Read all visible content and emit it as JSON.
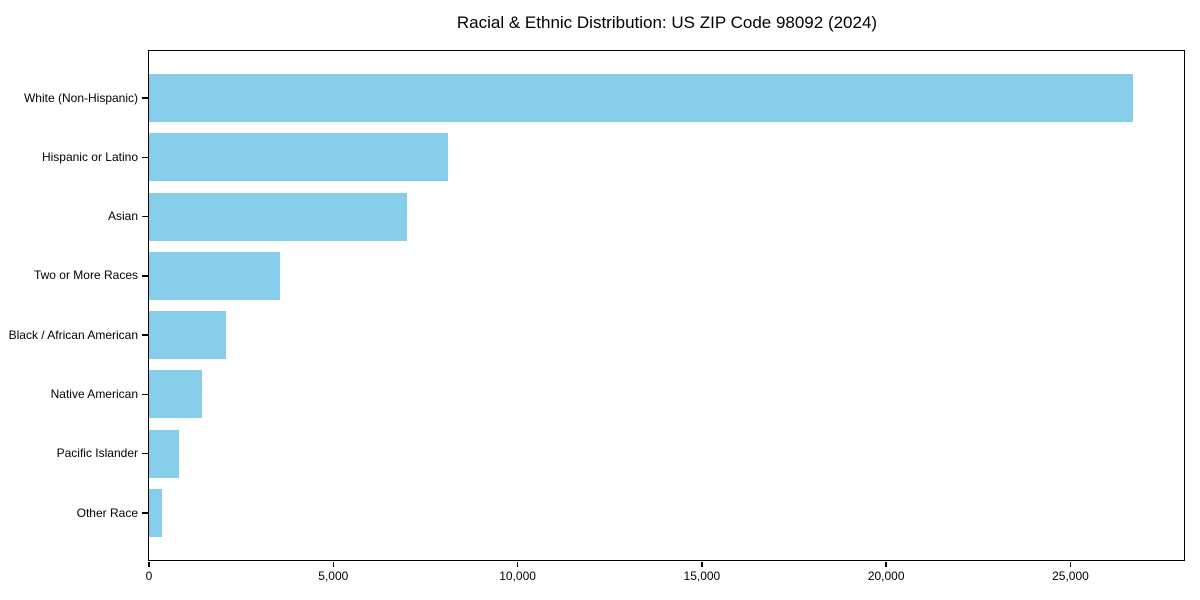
{
  "title": "Racial & Ethnic Distribution: US ZIP Code 98092 (2024)",
  "colors": {
    "bar": "#87CEEB",
    "axis": "#000000",
    "background": "#FFFFFF",
    "text": "#000000"
  },
  "chart_data": {
    "type": "bar",
    "orientation": "horizontal",
    "title": "Racial & Ethnic Distribution: US ZIP Code 98092 (2024)",
    "categories": [
      "White (Non-Hispanic)",
      "Hispanic or Latino",
      "Asian",
      "Two or More Races",
      "Black / African American",
      "Native American",
      "Pacific Islander",
      "Other Race"
    ],
    "values": [
      26700,
      8100,
      7000,
      3560,
      2100,
      1430,
      810,
      350
    ],
    "bar_color": "#87CEEB",
    "xlabel": "",
    "ylabel": "",
    "xlim": [
      0,
      28080
    ],
    "x_ticks": [
      0,
      5000,
      10000,
      15000,
      20000,
      25000
    ],
    "x_tick_labels": [
      "0",
      "5,000",
      "10,000",
      "15,000",
      "20,000",
      "25,000"
    ],
    "grid": false,
    "legend": null,
    "frame": "full-box"
  }
}
